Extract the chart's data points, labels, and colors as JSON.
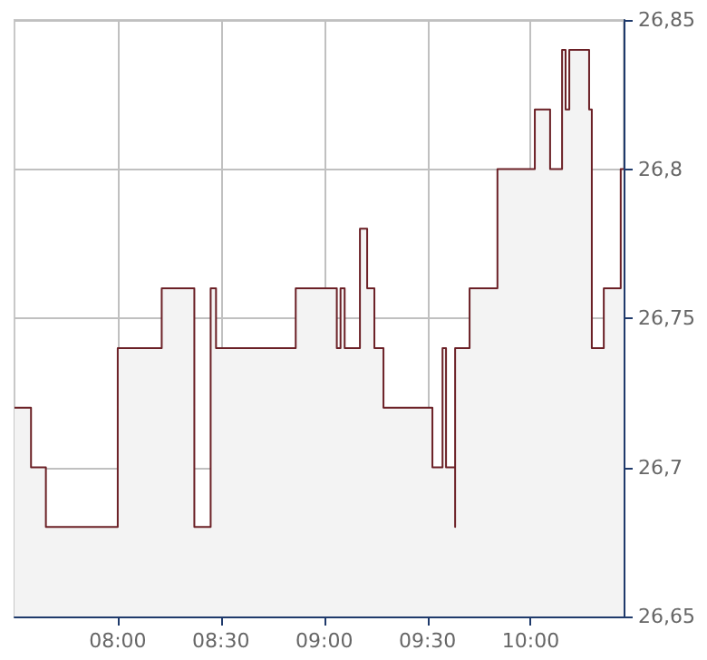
{
  "chart_data": {
    "type": "area",
    "x": [
      7.5,
      7.58,
      7.58,
      7.652,
      7.652,
      8.0,
      8.0,
      8.213,
      8.213,
      8.371,
      8.371,
      8.45,
      8.45,
      8.476,
      8.476,
      8.862,
      8.862,
      9.061,
      9.061,
      9.079,
      9.079,
      9.099,
      9.099,
      9.173,
      9.173,
      9.208,
      9.208,
      9.243,
      9.243,
      9.287,
      9.287,
      9.524,
      9.524,
      9.573,
      9.573,
      9.59,
      9.59,
      9.634,
      9.634,
      9.634,
      9.704,
      9.704,
      9.839,
      9.839,
      10.02,
      10.02,
      10.094,
      10.094,
      10.152,
      10.152,
      10.169,
      10.169,
      10.187,
      10.187,
      10.283,
      10.283,
      10.296,
      10.296,
      10.354,
      10.354,
      10.436,
      10.436,
      10.45
    ],
    "series": [
      {
        "color": "#6b2026",
        "values": [
          26.72,
          26.72,
          26.7,
          26.7,
          26.68,
          26.68,
          26.74,
          26.74,
          26.76,
          26.76,
          26.68,
          26.68,
          26.76,
          26.76,
          26.74,
          26.74,
          26.76,
          26.76,
          26.74,
          26.74,
          26.76,
          26.76,
          26.74,
          26.74,
          26.78,
          26.78,
          26.76,
          26.76,
          26.74,
          26.74,
          26.72,
          26.72,
          26.7,
          26.7,
          26.74,
          26.74,
          26.7,
          26.7,
          26.68,
          26.74,
          26.74,
          26.76,
          26.76,
          26.8,
          26.8,
          26.82,
          26.82,
          26.8,
          26.8,
          26.84,
          26.84,
          26.82,
          26.82,
          26.84,
          26.84,
          26.82,
          26.82,
          26.74,
          26.74,
          26.76,
          26.76,
          26.8,
          26.8
        ]
      }
    ],
    "xlim": [
      7.5,
      10.45
    ],
    "xticks": [
      {
        "value": 8,
        "label": "08:00"
      },
      {
        "value": 8.5,
        "label": "08:30"
      },
      {
        "value": 9,
        "label": "09:00"
      },
      {
        "value": 9.5,
        "label": "09:30"
      },
      {
        "value": 10,
        "label": "10:00"
      }
    ],
    "ylim": [
      26.65,
      26.85
    ],
    "yticks": [
      {
        "value": 26.65,
        "label": "26,65"
      },
      {
        "value": 26.7,
        "label": "26,7"
      },
      {
        "value": 26.75,
        "label": "26,75"
      },
      {
        "value": 26.8,
        "label": "26,8"
      },
      {
        "value": 26.85,
        "label": "26,85"
      }
    ],
    "grid": true,
    "marker": "none",
    "line_style": "solid"
  }
}
